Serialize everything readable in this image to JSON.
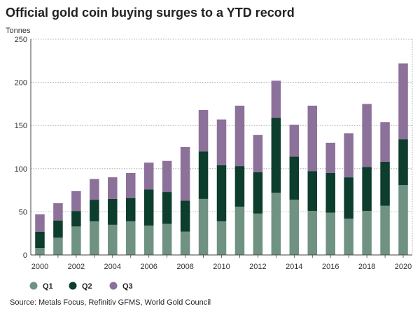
{
  "chart_data": {
    "type": "bar",
    "stacked": true,
    "title": "Official gold coin buying surges to a YTD record",
    "ylabel": "Tonnes",
    "xlabel": "",
    "ylim": [
      0,
      250
    ],
    "yticks": [
      0,
      50,
      100,
      150,
      200,
      250
    ],
    "grid": true,
    "legend_position": "bottom-left",
    "categories": [
      "2000",
      "2001",
      "2002",
      "2003",
      "2004",
      "2005",
      "2006",
      "2007",
      "2008",
      "2009",
      "2010",
      "2011",
      "2012",
      "2013",
      "2014",
      "2015",
      "2016",
      "2017",
      "2018",
      "2019",
      "2020"
    ],
    "xtick_labels": [
      "2000",
      "2002",
      "2004",
      "2006",
      "2008",
      "2010",
      "2012",
      "2014",
      "2016",
      "2018",
      "2020"
    ],
    "series": [
      {
        "name": "Q1",
        "color": "#6f9282",
        "values": [
          8,
          20,
          33,
          39,
          35,
          39,
          34,
          36,
          27,
          65,
          39,
          56,
          48,
          72,
          64,
          51,
          49,
          42,
          51,
          57,
          81
        ]
      },
      {
        "name": "Q2",
        "color": "#0d3d2c",
        "values": [
          19,
          20,
          18,
          25,
          30,
          27,
          42,
          37,
          36,
          55,
          65,
          47,
          48,
          87,
          50,
          46,
          46,
          48,
          51,
          51,
          53
        ]
      },
      {
        "name": "Q3",
        "color": "#8c719a",
        "values": [
          20,
          20,
          23,
          24,
          25,
          29,
          31,
          36,
          62,
          48,
          53,
          70,
          43,
          43,
          37,
          76,
          35,
          51,
          73,
          46,
          88
        ]
      }
    ],
    "source": "Source: Metals Focus, Refinitiv GFMS, World Gold Council"
  }
}
